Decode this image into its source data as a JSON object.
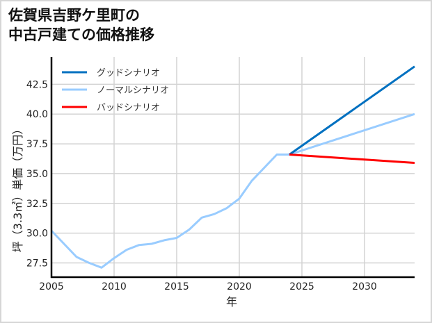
{
  "title": {
    "line1": "佐賀県吉野ケ里町の",
    "line2": "中古戸建ての価格推移"
  },
  "colors": {
    "good": "#0070c0",
    "normal": "#99ccff",
    "bad": "#ff0000",
    "grid": "#d3d3d3",
    "axis": "#000000"
  },
  "chart_data": {
    "type": "line",
    "title": "佐賀県吉野ケ里町の中古戸建ての価格推移",
    "xlabel": "年",
    "ylabel": "坪（3.3㎡）単価（万円）",
    "xlim": [
      2005,
      2034
    ],
    "ylim": [
      26.3,
      44.8
    ],
    "xticks": [
      2005,
      2010,
      2015,
      2020,
      2025,
      2030
    ],
    "yticks": [
      27.5,
      30.0,
      32.5,
      35.0,
      37.5,
      40.0,
      42.5
    ],
    "ytick_labels": [
      "27.5",
      "30.0",
      "32.5",
      "35.0",
      "37.5",
      "40.0",
      "42.5"
    ],
    "grid": true,
    "legend_position": "upper left",
    "series": [
      {
        "name": "グッドシナリオ",
        "color": "#0070c0",
        "x": [
          2024,
          2034
        ],
        "values": [
          36.6,
          44.0
        ]
      },
      {
        "name": "ノーマルシナリオ",
        "color": "#99ccff",
        "x": [
          2005,
          2006,
          2007,
          2008,
          2009,
          2010,
          2011,
          2012,
          2013,
          2014,
          2015,
          2016,
          2017,
          2018,
          2019,
          2020,
          2021,
          2022,
          2023,
          2024,
          2034
        ],
        "values": [
          30.2,
          29.1,
          28.0,
          27.5,
          27.1,
          27.9,
          28.6,
          29.0,
          29.1,
          29.4,
          29.6,
          30.3,
          31.3,
          31.6,
          32.1,
          32.9,
          34.4,
          35.5,
          36.6,
          36.6,
          40.0
        ]
      },
      {
        "name": "バッドシナリオ",
        "color": "#ff0000",
        "x": [
          2024,
          2034
        ],
        "values": [
          36.6,
          35.9
        ]
      }
    ]
  }
}
